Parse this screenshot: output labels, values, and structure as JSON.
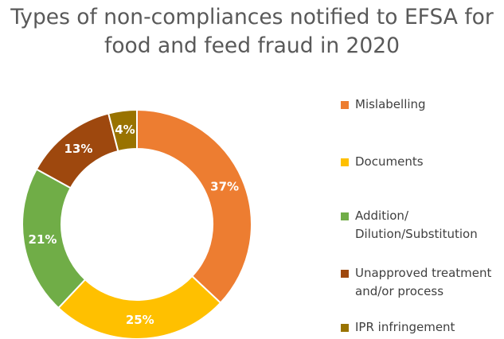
{
  "chart_data": {
    "type": "pie",
    "title_lines": [
      "Types of non-compliances notified to EFSA for",
      "food and feed fraud in 2020"
    ],
    "donut": true,
    "categories": [
      "Mislabelling",
      "Documents",
      "Addition/\nDilution/Substitution",
      "Unapproved treatment\nand/or process",
      "IPR infringement"
    ],
    "values": [
      37,
      25,
      21,
      13,
      4
    ],
    "data_labels": [
      "37%",
      "25%",
      "21%",
      "13%",
      "4%"
    ],
    "colors": [
      "#ED7D31",
      "#FFC000",
      "#70AD47",
      "#9E480E",
      "#997300"
    ],
    "legend_placement": "right"
  }
}
